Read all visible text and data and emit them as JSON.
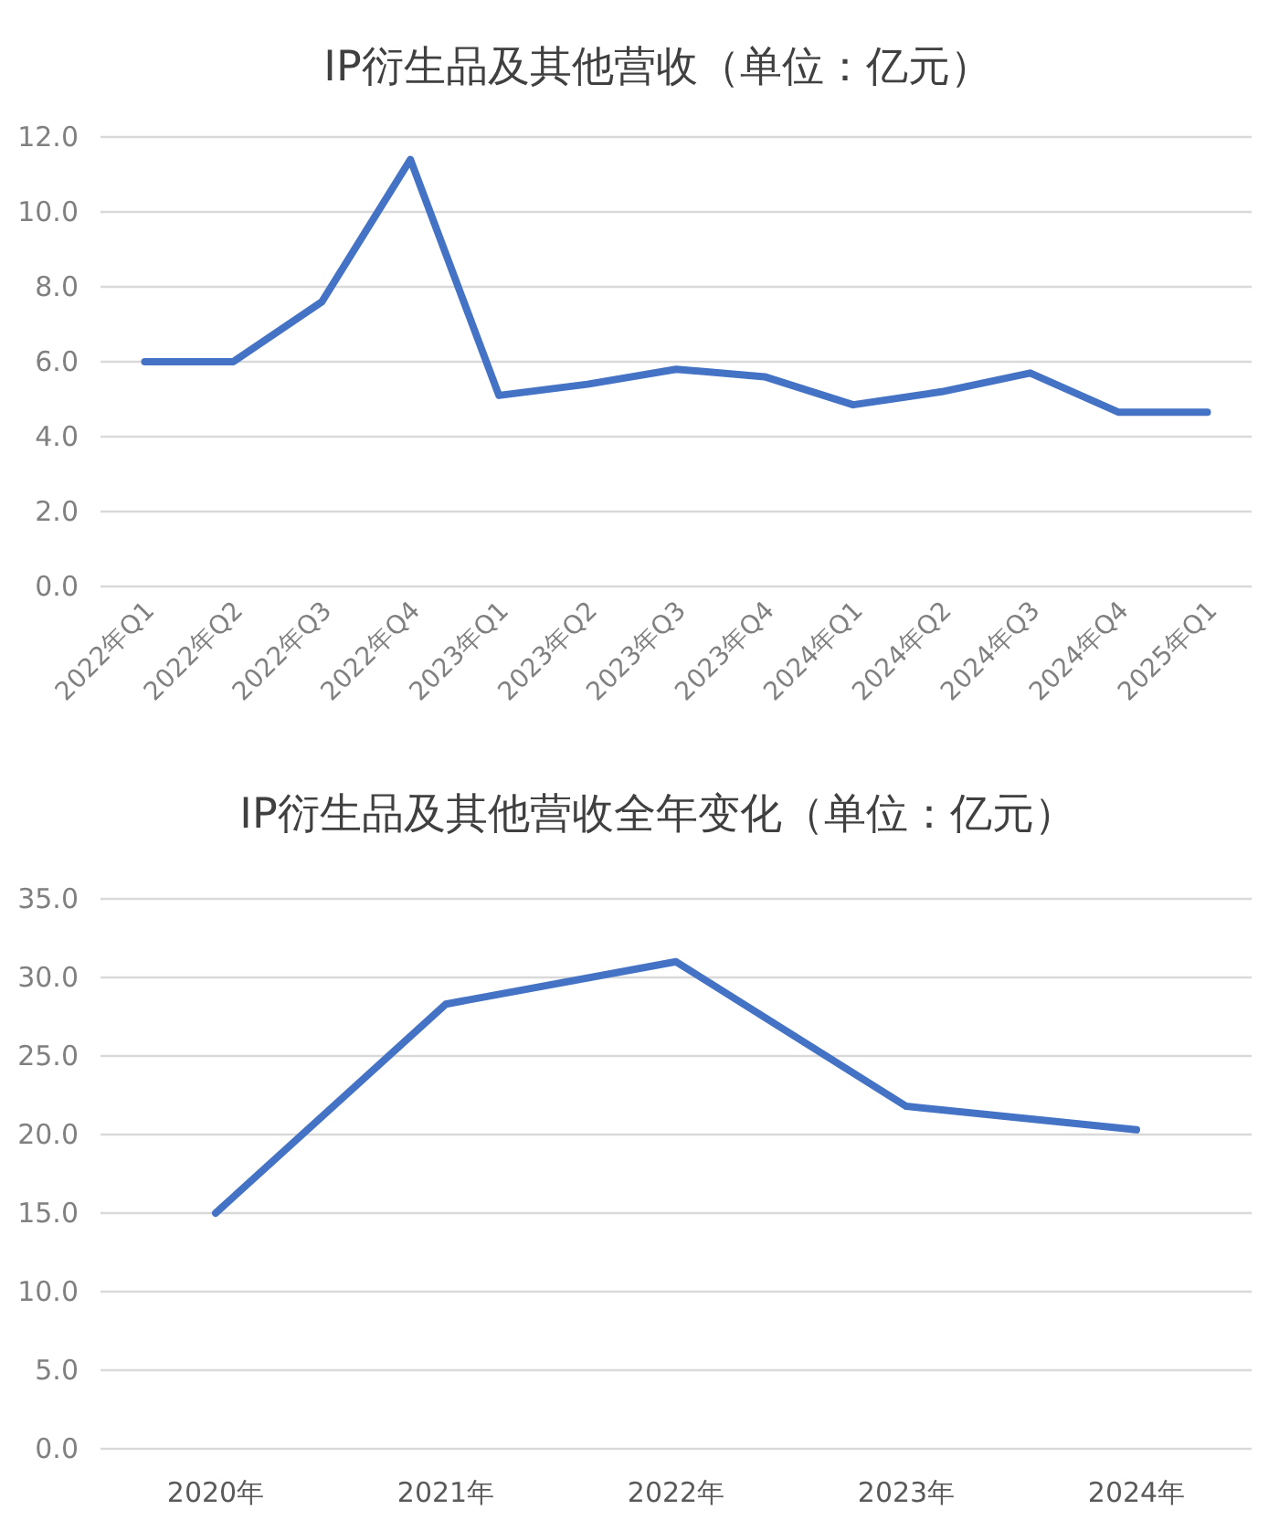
{
  "chart_data": [
    {
      "type": "line",
      "title": "IP衍生品及其他营收（单位：亿元）",
      "categories": [
        "2022年Q1",
        "2022年Q2",
        "2022年Q3",
        "2022年Q4",
        "2023年Q1",
        "2023年Q2",
        "2023年Q3",
        "2023年Q4",
        "2024年Q1",
        "2024年Q2",
        "2024年Q3",
        "2024年Q4",
        "2025年Q1"
      ],
      "series": [
        {
          "color": "#4472c4",
          "values": [
            6.0,
            6.0,
            7.6,
            11.4,
            5.1,
            5.4,
            5.8,
            5.6,
            4.85,
            5.2,
            5.7,
            4.65,
            4.65
          ]
        }
      ],
      "ylim": [
        0,
        12
      ],
      "yticks": [
        {
          "value": 0,
          "label": "0.0"
        },
        {
          "value": 2,
          "label": "2.0"
        },
        {
          "value": 4,
          "label": "4.0"
        },
        {
          "value": 6,
          "label": "6.0"
        },
        {
          "value": 8,
          "label": "8.0"
        },
        {
          "value": 10,
          "label": "10.0"
        },
        {
          "value": 12,
          "label": "12.0"
        }
      ],
      "grid": "y"
    },
    {
      "type": "line",
      "title": "IP衍生品及其他营收全年变化（单位：亿元）",
      "categories": [
        "2020年",
        "2021年",
        "2022年",
        "2023年",
        "2024年"
      ],
      "series": [
        {
          "color": "#4472c4",
          "values": [
            15.0,
            28.3,
            31.0,
            21.8,
            20.3
          ]
        }
      ],
      "ylim": [
        0,
        35
      ],
      "yticks": [
        {
          "value": 0,
          "label": "0.0"
        },
        {
          "value": 5,
          "label": "5.0"
        },
        {
          "value": 10,
          "label": "10.0"
        },
        {
          "value": 15,
          "label": "15.0"
        },
        {
          "value": 20,
          "label": "20.0"
        },
        {
          "value": 25,
          "label": "25.0"
        },
        {
          "value": 30,
          "label": "30.0"
        },
        {
          "value": 35,
          "label": "35.0"
        }
      ],
      "grid": "y"
    }
  ]
}
